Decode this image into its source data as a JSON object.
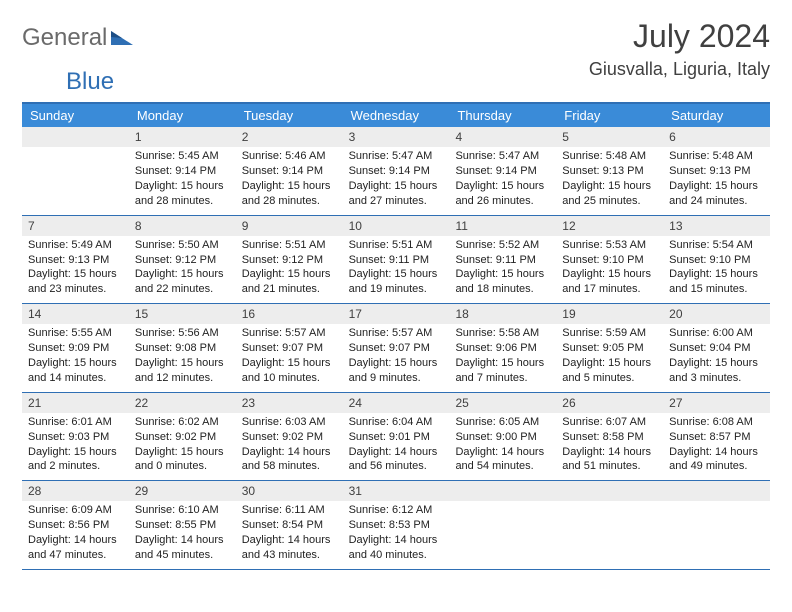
{
  "logo": {
    "text1": "General",
    "text2": "Blue"
  },
  "title": "July 2024",
  "location": "Giusvalla, Liguria, Italy",
  "colors": {
    "header_bg": "#3a8bd8",
    "border": "#2f6fb4",
    "daynum_bg": "#ededed",
    "text": "#222222",
    "title_text": "#404040"
  },
  "day_headers": [
    "Sunday",
    "Monday",
    "Tuesday",
    "Wednesday",
    "Thursday",
    "Friday",
    "Saturday"
  ],
  "weeks": [
    [
      {
        "num": "",
        "sunrise": "",
        "sunset": "",
        "daylight1": "",
        "daylight2": ""
      },
      {
        "num": "1",
        "sunrise": "Sunrise: 5:45 AM",
        "sunset": "Sunset: 9:14 PM",
        "daylight1": "Daylight: 15 hours",
        "daylight2": "and 28 minutes."
      },
      {
        "num": "2",
        "sunrise": "Sunrise: 5:46 AM",
        "sunset": "Sunset: 9:14 PM",
        "daylight1": "Daylight: 15 hours",
        "daylight2": "and 28 minutes."
      },
      {
        "num": "3",
        "sunrise": "Sunrise: 5:47 AM",
        "sunset": "Sunset: 9:14 PM",
        "daylight1": "Daylight: 15 hours",
        "daylight2": "and 27 minutes."
      },
      {
        "num": "4",
        "sunrise": "Sunrise: 5:47 AM",
        "sunset": "Sunset: 9:14 PM",
        "daylight1": "Daylight: 15 hours",
        "daylight2": "and 26 minutes."
      },
      {
        "num": "5",
        "sunrise": "Sunrise: 5:48 AM",
        "sunset": "Sunset: 9:13 PM",
        "daylight1": "Daylight: 15 hours",
        "daylight2": "and 25 minutes."
      },
      {
        "num": "6",
        "sunrise": "Sunrise: 5:48 AM",
        "sunset": "Sunset: 9:13 PM",
        "daylight1": "Daylight: 15 hours",
        "daylight2": "and 24 minutes."
      }
    ],
    [
      {
        "num": "7",
        "sunrise": "Sunrise: 5:49 AM",
        "sunset": "Sunset: 9:13 PM",
        "daylight1": "Daylight: 15 hours",
        "daylight2": "and 23 minutes."
      },
      {
        "num": "8",
        "sunrise": "Sunrise: 5:50 AM",
        "sunset": "Sunset: 9:12 PM",
        "daylight1": "Daylight: 15 hours",
        "daylight2": "and 22 minutes."
      },
      {
        "num": "9",
        "sunrise": "Sunrise: 5:51 AM",
        "sunset": "Sunset: 9:12 PM",
        "daylight1": "Daylight: 15 hours",
        "daylight2": "and 21 minutes."
      },
      {
        "num": "10",
        "sunrise": "Sunrise: 5:51 AM",
        "sunset": "Sunset: 9:11 PM",
        "daylight1": "Daylight: 15 hours",
        "daylight2": "and 19 minutes."
      },
      {
        "num": "11",
        "sunrise": "Sunrise: 5:52 AM",
        "sunset": "Sunset: 9:11 PM",
        "daylight1": "Daylight: 15 hours",
        "daylight2": "and 18 minutes."
      },
      {
        "num": "12",
        "sunrise": "Sunrise: 5:53 AM",
        "sunset": "Sunset: 9:10 PM",
        "daylight1": "Daylight: 15 hours",
        "daylight2": "and 17 minutes."
      },
      {
        "num": "13",
        "sunrise": "Sunrise: 5:54 AM",
        "sunset": "Sunset: 9:10 PM",
        "daylight1": "Daylight: 15 hours",
        "daylight2": "and 15 minutes."
      }
    ],
    [
      {
        "num": "14",
        "sunrise": "Sunrise: 5:55 AM",
        "sunset": "Sunset: 9:09 PM",
        "daylight1": "Daylight: 15 hours",
        "daylight2": "and 14 minutes."
      },
      {
        "num": "15",
        "sunrise": "Sunrise: 5:56 AM",
        "sunset": "Sunset: 9:08 PM",
        "daylight1": "Daylight: 15 hours",
        "daylight2": "and 12 minutes."
      },
      {
        "num": "16",
        "sunrise": "Sunrise: 5:57 AM",
        "sunset": "Sunset: 9:07 PM",
        "daylight1": "Daylight: 15 hours",
        "daylight2": "and 10 minutes."
      },
      {
        "num": "17",
        "sunrise": "Sunrise: 5:57 AM",
        "sunset": "Sunset: 9:07 PM",
        "daylight1": "Daylight: 15 hours",
        "daylight2": "and 9 minutes."
      },
      {
        "num": "18",
        "sunrise": "Sunrise: 5:58 AM",
        "sunset": "Sunset: 9:06 PM",
        "daylight1": "Daylight: 15 hours",
        "daylight2": "and 7 minutes."
      },
      {
        "num": "19",
        "sunrise": "Sunrise: 5:59 AM",
        "sunset": "Sunset: 9:05 PM",
        "daylight1": "Daylight: 15 hours",
        "daylight2": "and 5 minutes."
      },
      {
        "num": "20",
        "sunrise": "Sunrise: 6:00 AM",
        "sunset": "Sunset: 9:04 PM",
        "daylight1": "Daylight: 15 hours",
        "daylight2": "and 3 minutes."
      }
    ],
    [
      {
        "num": "21",
        "sunrise": "Sunrise: 6:01 AM",
        "sunset": "Sunset: 9:03 PM",
        "daylight1": "Daylight: 15 hours",
        "daylight2": "and 2 minutes."
      },
      {
        "num": "22",
        "sunrise": "Sunrise: 6:02 AM",
        "sunset": "Sunset: 9:02 PM",
        "daylight1": "Daylight: 15 hours",
        "daylight2": "and 0 minutes."
      },
      {
        "num": "23",
        "sunrise": "Sunrise: 6:03 AM",
        "sunset": "Sunset: 9:02 PM",
        "daylight1": "Daylight: 14 hours",
        "daylight2": "and 58 minutes."
      },
      {
        "num": "24",
        "sunrise": "Sunrise: 6:04 AM",
        "sunset": "Sunset: 9:01 PM",
        "daylight1": "Daylight: 14 hours",
        "daylight2": "and 56 minutes."
      },
      {
        "num": "25",
        "sunrise": "Sunrise: 6:05 AM",
        "sunset": "Sunset: 9:00 PM",
        "daylight1": "Daylight: 14 hours",
        "daylight2": "and 54 minutes."
      },
      {
        "num": "26",
        "sunrise": "Sunrise: 6:07 AM",
        "sunset": "Sunset: 8:58 PM",
        "daylight1": "Daylight: 14 hours",
        "daylight2": "and 51 minutes."
      },
      {
        "num": "27",
        "sunrise": "Sunrise: 6:08 AM",
        "sunset": "Sunset: 8:57 PM",
        "daylight1": "Daylight: 14 hours",
        "daylight2": "and 49 minutes."
      }
    ],
    [
      {
        "num": "28",
        "sunrise": "Sunrise: 6:09 AM",
        "sunset": "Sunset: 8:56 PM",
        "daylight1": "Daylight: 14 hours",
        "daylight2": "and 47 minutes."
      },
      {
        "num": "29",
        "sunrise": "Sunrise: 6:10 AM",
        "sunset": "Sunset: 8:55 PM",
        "daylight1": "Daylight: 14 hours",
        "daylight2": "and 45 minutes."
      },
      {
        "num": "30",
        "sunrise": "Sunrise: 6:11 AM",
        "sunset": "Sunset: 8:54 PM",
        "daylight1": "Daylight: 14 hours",
        "daylight2": "and 43 minutes."
      },
      {
        "num": "31",
        "sunrise": "Sunrise: 6:12 AM",
        "sunset": "Sunset: 8:53 PM",
        "daylight1": "Daylight: 14 hours",
        "daylight2": "and 40 minutes."
      },
      {
        "num": "",
        "sunrise": "",
        "sunset": "",
        "daylight1": "",
        "daylight2": ""
      },
      {
        "num": "",
        "sunrise": "",
        "sunset": "",
        "daylight1": "",
        "daylight2": ""
      },
      {
        "num": "",
        "sunrise": "",
        "sunset": "",
        "daylight1": "",
        "daylight2": ""
      }
    ]
  ]
}
